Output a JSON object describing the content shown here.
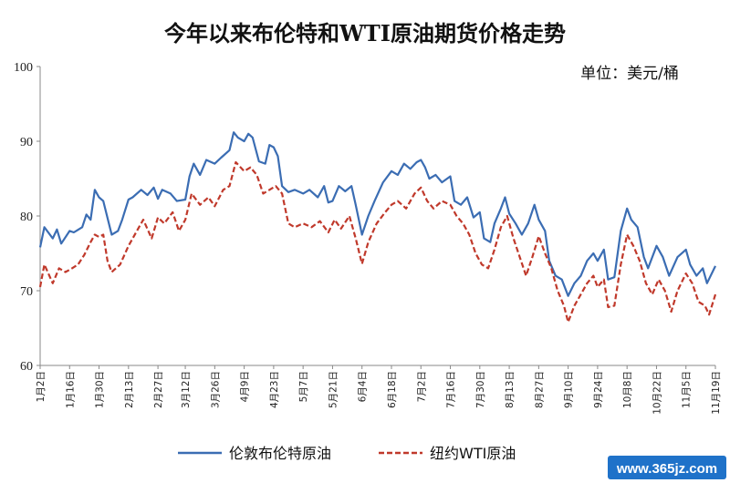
{
  "chart_data": {
    "type": "line",
    "title": "今年以来布伦特和WTI原油期货价格走势",
    "unit_label": "单位：美元/桶",
    "ylim": [
      60,
      100
    ],
    "yticks": [
      60,
      70,
      80,
      90,
      100
    ],
    "grid": false,
    "legend_position": "bottom-center",
    "x_dates": [
      "2018-01-02",
      "2018-01-16",
      "2018-01-30",
      "2018-02-13",
      "2018-02-27",
      "2018-03-12",
      "2018-03-26",
      "2018-04-09",
      "2018-04-23",
      "2018-05-07",
      "2018-05-21",
      "2018-06-04",
      "2018-06-18",
      "2018-07-02",
      "2018-07-16",
      "2018-07-30",
      "2018-08-13",
      "2018-08-27",
      "2018-09-10",
      "2018-09-24",
      "2018-10-08",
      "2018-10-22",
      "2018-11-05",
      "2018-11-19"
    ],
    "x_tick_labels": [
      "1月2日",
      "1月16日",
      "1月30日",
      "2月13日",
      "2月27日",
      "3月12日",
      "3月26日",
      "4月9日",
      "4月23日",
      "5月7日",
      "5月21日",
      "6月4日",
      "6月18日",
      "7月2日",
      "7月16日",
      "7月30日",
      "8月13日",
      "8月27日",
      "9月10日",
      "9月24日",
      "10月8日",
      "10月22日",
      "11月5日",
      "11月19日"
    ],
    "series": [
      {
        "name": "伦敦布伦特原油",
        "color": "#3b6db3",
        "style": "solid",
        "points": [
          [
            "2018-01-02",
            75.8
          ],
          [
            "2018-01-04",
            78.5
          ],
          [
            "2018-01-08",
            77.0
          ],
          [
            "2018-01-10",
            78.2
          ],
          [
            "2018-01-12",
            76.3
          ],
          [
            "2018-01-16",
            78.0
          ],
          [
            "2018-01-18",
            77.8
          ],
          [
            "2018-01-22",
            78.5
          ],
          [
            "2018-01-24",
            80.2
          ],
          [
            "2018-01-26",
            79.5
          ],
          [
            "2018-01-28",
            83.5
          ],
          [
            "2018-01-30",
            82.5
          ],
          [
            "2018-02-01",
            82.0
          ],
          [
            "2018-02-05",
            77.5
          ],
          [
            "2018-02-08",
            78.0
          ],
          [
            "2018-02-10",
            79.5
          ],
          [
            "2018-02-13",
            82.2
          ],
          [
            "2018-02-15",
            82.5
          ],
          [
            "2018-02-19",
            83.5
          ],
          [
            "2018-02-22",
            82.8
          ],
          [
            "2018-02-25",
            83.8
          ],
          [
            "2018-02-27",
            82.3
          ],
          [
            "2018-03-01",
            83.5
          ],
          [
            "2018-03-05",
            83.0
          ],
          [
            "2018-03-08",
            82.0
          ],
          [
            "2018-03-12",
            82.2
          ],
          [
            "2018-03-14",
            85.3
          ],
          [
            "2018-03-16",
            87.0
          ],
          [
            "2018-03-19",
            85.5
          ],
          [
            "2018-03-22",
            87.5
          ],
          [
            "2018-03-26",
            87.0
          ],
          [
            "2018-03-29",
            87.8
          ],
          [
            "2018-04-02",
            88.8
          ],
          [
            "2018-04-04",
            91.2
          ],
          [
            "2018-04-06",
            90.5
          ],
          [
            "2018-04-09",
            90.0
          ],
          [
            "2018-04-11",
            91.0
          ],
          [
            "2018-04-13",
            90.5
          ],
          [
            "2018-04-16",
            87.3
          ],
          [
            "2018-04-19",
            87.0
          ],
          [
            "2018-04-21",
            89.5
          ],
          [
            "2018-04-23",
            89.2
          ],
          [
            "2018-04-25",
            88.0
          ],
          [
            "2018-04-27",
            84.0
          ],
          [
            "2018-04-30",
            83.2
          ],
          [
            "2018-05-03",
            83.5
          ],
          [
            "2018-05-07",
            83.0
          ],
          [
            "2018-05-10",
            83.5
          ],
          [
            "2018-05-14",
            82.5
          ],
          [
            "2018-05-17",
            84.0
          ],
          [
            "2018-05-19",
            81.8
          ],
          [
            "2018-05-21",
            82.0
          ],
          [
            "2018-05-24",
            84.0
          ],
          [
            "2018-05-27",
            83.3
          ],
          [
            "2018-05-30",
            84.0
          ],
          [
            "2018-06-01",
            81.5
          ],
          [
            "2018-06-04",
            77.5
          ],
          [
            "2018-06-07",
            80.0
          ],
          [
            "2018-06-10",
            82.0
          ],
          [
            "2018-06-14",
            84.5
          ],
          [
            "2018-06-18",
            86.0
          ],
          [
            "2018-06-21",
            85.5
          ],
          [
            "2018-06-24",
            87.0
          ],
          [
            "2018-06-27",
            86.3
          ],
          [
            "2018-06-30",
            87.2
          ],
          [
            "2018-07-02",
            87.5
          ],
          [
            "2018-07-04",
            86.5
          ],
          [
            "2018-07-06",
            85.0
          ],
          [
            "2018-07-09",
            85.5
          ],
          [
            "2018-07-12",
            84.5
          ],
          [
            "2018-07-16",
            85.3
          ],
          [
            "2018-07-18",
            82.0
          ],
          [
            "2018-07-21",
            81.5
          ],
          [
            "2018-07-24",
            82.5
          ],
          [
            "2018-07-27",
            79.8
          ],
          [
            "2018-07-30",
            80.5
          ],
          [
            "2018-08-01",
            77.0
          ],
          [
            "2018-08-04",
            76.5
          ],
          [
            "2018-08-06",
            79.0
          ],
          [
            "2018-08-09",
            81.0
          ],
          [
            "2018-08-11",
            82.5
          ],
          [
            "2018-08-13",
            80.3
          ],
          [
            "2018-08-16",
            79.0
          ],
          [
            "2018-08-19",
            77.5
          ],
          [
            "2018-08-22",
            79.0
          ],
          [
            "2018-08-25",
            81.5
          ],
          [
            "2018-08-27",
            79.5
          ],
          [
            "2018-08-30",
            78.0
          ],
          [
            "2018-09-01",
            74.0
          ],
          [
            "2018-09-04",
            72.0
          ],
          [
            "2018-09-07",
            71.5
          ],
          [
            "2018-09-10",
            69.3
          ],
          [
            "2018-09-13",
            71.0
          ],
          [
            "2018-09-16",
            72.0
          ],
          [
            "2018-09-19",
            74.0
          ],
          [
            "2018-09-22",
            75.0
          ],
          [
            "2018-09-24",
            74.0
          ],
          [
            "2018-09-27",
            75.5
          ],
          [
            "2018-09-29",
            71.5
          ],
          [
            "2018-10-02",
            71.8
          ],
          [
            "2018-10-05",
            78.0
          ],
          [
            "2018-10-08",
            81.0
          ],
          [
            "2018-10-10",
            79.5
          ],
          [
            "2018-10-13",
            78.5
          ],
          [
            "2018-10-16",
            74.5
          ],
          [
            "2018-10-18",
            73.0
          ],
          [
            "2018-10-22",
            76.0
          ],
          [
            "2018-10-25",
            74.5
          ],
          [
            "2018-10-28",
            72.0
          ],
          [
            "2018-11-01",
            74.5
          ],
          [
            "2018-11-05",
            75.5
          ],
          [
            "2018-11-07",
            73.5
          ],
          [
            "2018-11-10",
            72.0
          ],
          [
            "2018-11-13",
            73.0
          ],
          [
            "2018-11-15",
            71.0
          ],
          [
            "2018-11-19",
            73.3
          ]
        ]
      },
      {
        "name": "纽约WTI原油",
        "color": "#c0392b",
        "style": "dashed",
        "points": [
          [
            "2018-01-02",
            70.5
          ],
          [
            "2018-01-04",
            73.5
          ],
          [
            "2018-01-08",
            71.0
          ],
          [
            "2018-01-11",
            73.0
          ],
          [
            "2018-01-14",
            72.5
          ],
          [
            "2018-01-16",
            72.8
          ],
          [
            "2018-01-20",
            73.5
          ],
          [
            "2018-01-23",
            74.8
          ],
          [
            "2018-01-26",
            76.5
          ],
          [
            "2018-01-28",
            77.5
          ],
          [
            "2018-01-30",
            77.2
          ],
          [
            "2018-02-01",
            77.5
          ],
          [
            "2018-02-03",
            74.0
          ],
          [
            "2018-02-05",
            72.5
          ],
          [
            "2018-02-09",
            73.5
          ],
          [
            "2018-02-13",
            76.0
          ],
          [
            "2018-02-17",
            78.0
          ],
          [
            "2018-02-20",
            79.5
          ],
          [
            "2018-02-24",
            77.0
          ],
          [
            "2018-02-27",
            79.8
          ],
          [
            "2018-03-02",
            79.0
          ],
          [
            "2018-03-06",
            80.5
          ],
          [
            "2018-03-09",
            78.0
          ],
          [
            "2018-03-12",
            79.5
          ],
          [
            "2018-03-15",
            83.0
          ],
          [
            "2018-03-19",
            81.5
          ],
          [
            "2018-03-23",
            82.5
          ],
          [
            "2018-03-26",
            81.3
          ],
          [
            "2018-03-30",
            83.5
          ],
          [
            "2018-04-02",
            84.0
          ],
          [
            "2018-04-05",
            87.2
          ],
          [
            "2018-04-09",
            86.0
          ],
          [
            "2018-04-12",
            86.5
          ],
          [
            "2018-04-15",
            85.5
          ],
          [
            "2018-04-18",
            83.0
          ],
          [
            "2018-04-21",
            83.5
          ],
          [
            "2018-04-24",
            84.0
          ],
          [
            "2018-04-27",
            83.0
          ],
          [
            "2018-04-30",
            79.0
          ],
          [
            "2018-05-03",
            78.5
          ],
          [
            "2018-05-07",
            79.0
          ],
          [
            "2018-05-11",
            78.5
          ],
          [
            "2018-05-15",
            79.3
          ],
          [
            "2018-05-19",
            77.8
          ],
          [
            "2018-05-22",
            79.5
          ],
          [
            "2018-05-25",
            78.3
          ],
          [
            "2018-05-29",
            80.0
          ],
          [
            "2018-06-01",
            77.0
          ],
          [
            "2018-06-04",
            73.6
          ],
          [
            "2018-06-07",
            76.5
          ],
          [
            "2018-06-11",
            79.0
          ],
          [
            "2018-06-15",
            80.5
          ],
          [
            "2018-06-18",
            81.5
          ],
          [
            "2018-06-21",
            82.0
          ],
          [
            "2018-06-25",
            81.0
          ],
          [
            "2018-06-29",
            83.0
          ],
          [
            "2018-07-02",
            83.8
          ],
          [
            "2018-07-05",
            82.0
          ],
          [
            "2018-07-08",
            81.0
          ],
          [
            "2018-07-12",
            82.0
          ],
          [
            "2018-07-16",
            81.5
          ],
          [
            "2018-07-19",
            80.0
          ],
          [
            "2018-07-22",
            79.0
          ],
          [
            "2018-07-25",
            77.5
          ],
          [
            "2018-07-28",
            75.0
          ],
          [
            "2018-07-31",
            73.5
          ],
          [
            "2018-08-03",
            73.0
          ],
          [
            "2018-08-06",
            75.5
          ],
          [
            "2018-08-09",
            78.5
          ],
          [
            "2018-08-12",
            80.0
          ],
          [
            "2018-08-15",
            77.0
          ],
          [
            "2018-08-18",
            74.5
          ],
          [
            "2018-08-21",
            72.0
          ],
          [
            "2018-08-24",
            74.5
          ],
          [
            "2018-08-27",
            77.3
          ],
          [
            "2018-08-30",
            75.0
          ],
          [
            "2018-09-02",
            73.0
          ],
          [
            "2018-09-05",
            70.0
          ],
          [
            "2018-09-08",
            68.0
          ],
          [
            "2018-09-10",
            65.8
          ],
          [
            "2018-09-13",
            68.0
          ],
          [
            "2018-09-16",
            69.5
          ],
          [
            "2018-09-19",
            71.0
          ],
          [
            "2018-09-22",
            72.0
          ],
          [
            "2018-09-24",
            70.5
          ],
          [
            "2018-09-27",
            71.5
          ],
          [
            "2018-09-29",
            67.8
          ],
          [
            "2018-10-02",
            68.0
          ],
          [
            "2018-10-05",
            73.5
          ],
          [
            "2018-10-08",
            77.5
          ],
          [
            "2018-10-11",
            76.0
          ],
          [
            "2018-10-14",
            74.0
          ],
          [
            "2018-10-17",
            71.0
          ],
          [
            "2018-10-20",
            69.5
          ],
          [
            "2018-10-23",
            71.5
          ],
          [
            "2018-10-26",
            70.0
          ],
          [
            "2018-10-29",
            67.2
          ],
          [
            "2018-11-01",
            70.0
          ],
          [
            "2018-11-05",
            72.3
          ],
          [
            "2018-11-08",
            71.0
          ],
          [
            "2018-11-11",
            68.5
          ],
          [
            "2018-11-14",
            68.0
          ],
          [
            "2018-11-16",
            66.8
          ],
          [
            "2018-11-19",
            69.5
          ]
        ]
      }
    ]
  },
  "watermark_text": "www.365jz.com"
}
